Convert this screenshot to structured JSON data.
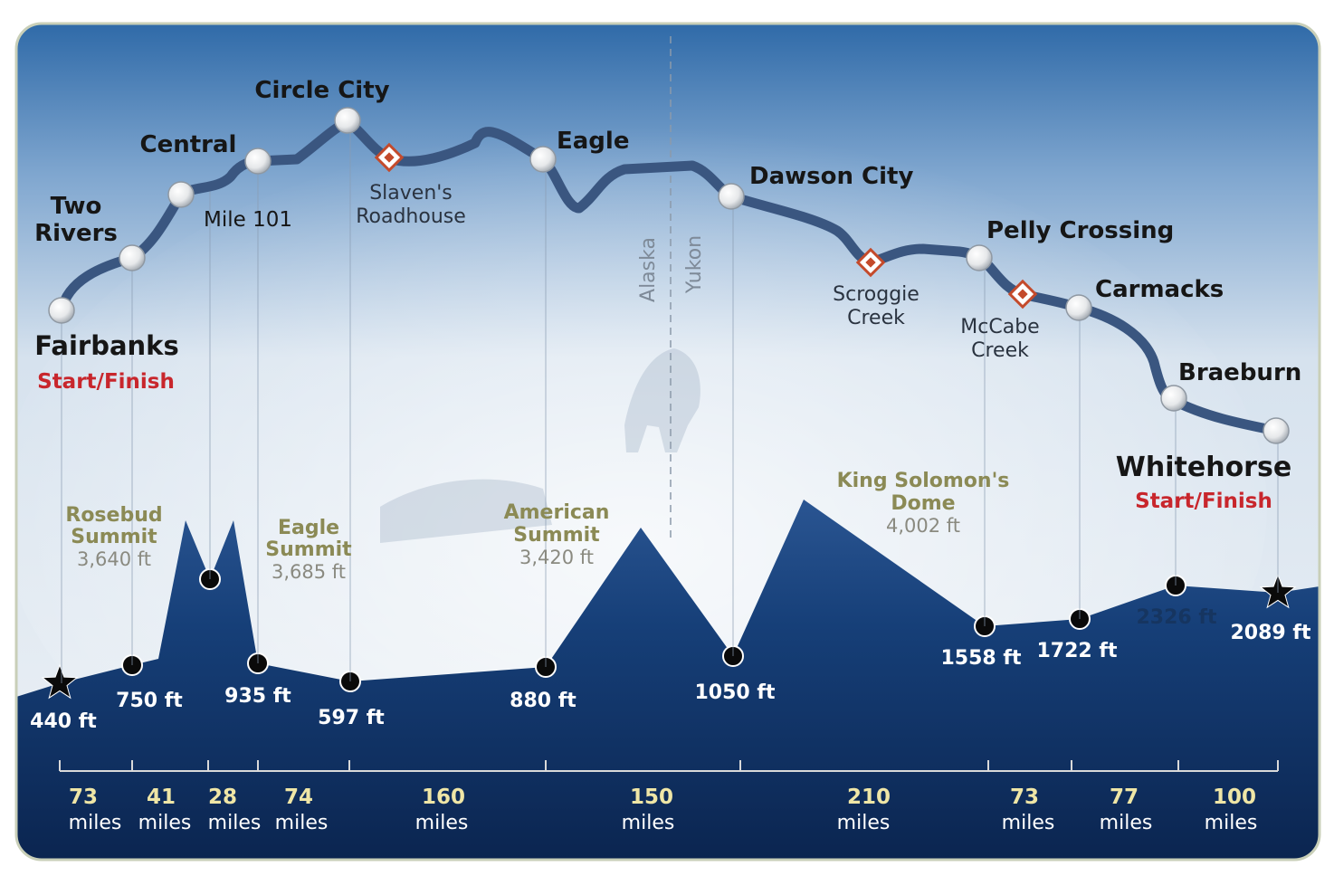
{
  "route_stops": [
    {
      "name_lines": [
        "Fairbanks"
      ],
      "sub": "Start/Finish",
      "kind": "town"
    },
    {
      "name_lines": [
        "Two",
        "Rivers"
      ],
      "kind": "town"
    },
    {
      "name_lines": [
        "Mile 101"
      ],
      "kind": "town"
    },
    {
      "name_lines": [
        "Central"
      ],
      "kind": "town"
    },
    {
      "name_lines": [
        "Circle City"
      ],
      "kind": "town"
    },
    {
      "name_lines": [
        "Slaven's",
        "Roadhouse"
      ],
      "kind": "roadhouse"
    },
    {
      "name_lines": [
        "Eagle"
      ],
      "kind": "town"
    },
    {
      "name_lines": [
        "Dawson City"
      ],
      "kind": "town"
    },
    {
      "name_lines": [
        "Scroggie",
        "Creek"
      ],
      "kind": "roadhouse"
    },
    {
      "name_lines": [
        "Pelly Crossing"
      ],
      "kind": "town"
    },
    {
      "name_lines": [
        "McCabe",
        "Creek"
      ],
      "kind": "roadhouse"
    },
    {
      "name_lines": [
        "Carmacks"
      ],
      "kind": "town"
    },
    {
      "name_lines": [
        "Braeburn"
      ],
      "kind": "town"
    },
    {
      "name_lines": [
        "Whitehorse"
      ],
      "sub": "Start/Finish",
      "kind": "town"
    }
  ],
  "border": {
    "left_label": "Alaska",
    "right_label": "Yukon"
  },
  "elevations": [
    "440 ft",
    "750 ft",
    "935 ft",
    "597 ft",
    "880 ft",
    "1050 ft",
    "1558 ft",
    "1722 ft",
    "2326 ft",
    "2089 ft"
  ],
  "summits": [
    {
      "name_lines": [
        "Rosebud",
        "Summit"
      ],
      "elev": "3,640 ft"
    },
    {
      "name_lines": [
        "Eagle",
        "Summit"
      ],
      "elev": "3,685 ft"
    },
    {
      "name_lines": [
        "American",
        "Summit"
      ],
      "elev": "3,420 ft"
    },
    {
      "name_lines": [
        "King Solomon's",
        "Dome"
      ],
      "elev": "4,002 ft"
    }
  ],
  "segments": [
    {
      "num": "73",
      "unit": "miles"
    },
    {
      "num": "41",
      "unit": "miles"
    },
    {
      "num": "28",
      "unit": "miles"
    },
    {
      "num": "74",
      "unit": "miles"
    },
    {
      "num": "160",
      "unit": "miles"
    },
    {
      "num": "150",
      "unit": "miles"
    },
    {
      "num": "210",
      "unit": "miles"
    },
    {
      "num": "73",
      "unit": "miles"
    },
    {
      "num": "77",
      "unit": "miles"
    },
    {
      "num": "100",
      "unit": "miles"
    }
  ],
  "colors": {
    "route": "#3a5680",
    "start_finish": "#c8262c",
    "summit": "#8b8a55",
    "summit_elev": "#8a8a80",
    "mountain_top": "#1f4a86",
    "mountain_bottom": "#0d2a56",
    "mileage": "#efe6a6"
  }
}
